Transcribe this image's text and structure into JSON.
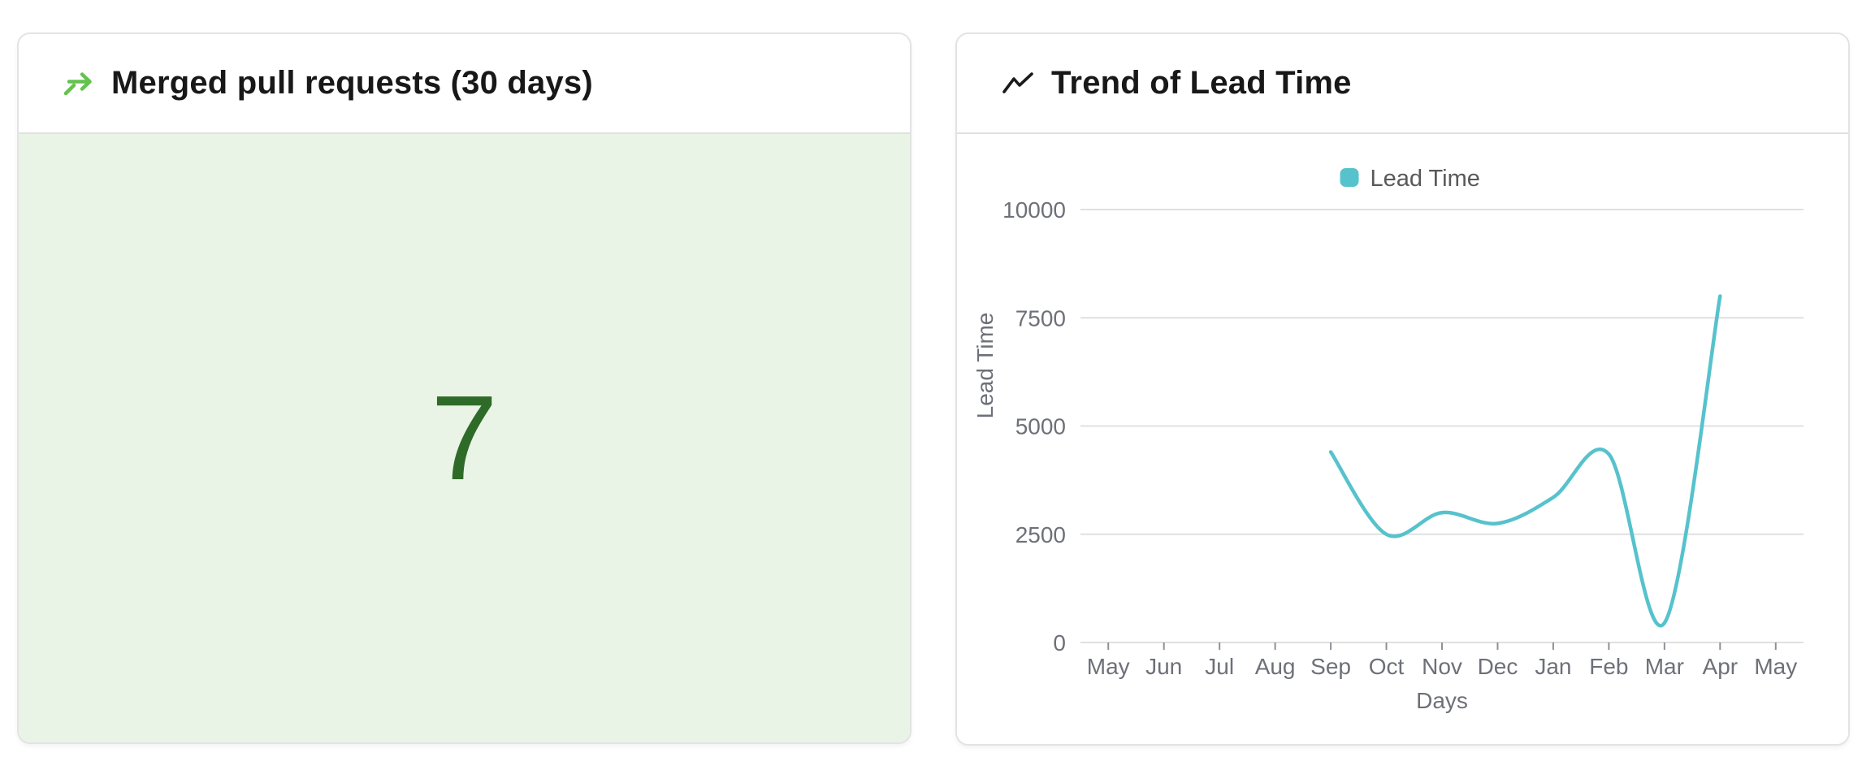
{
  "left_panel": {
    "title": "Merged pull requests (30 days)",
    "value": "7",
    "icon": "git-merge-arrow-icon",
    "value_color": "#2F6B28",
    "background_color": "#EAF4E6",
    "icon_color": "#64C24E"
  },
  "right_panel": {
    "title": "Trend of Lead Time",
    "icon": "trend-up-icon"
  },
  "chart_data": {
    "type": "line",
    "title": "Trend of Lead Time",
    "categories": [
      "May",
      "Jun",
      "Jul",
      "Aug",
      "Sep",
      "Oct",
      "Nov",
      "Dec",
      "Jan",
      "Feb",
      "Mar",
      "Apr",
      "May"
    ],
    "series": [
      {
        "name": "Lead Time",
        "color": "#56C2CC",
        "values": [
          null,
          null,
          null,
          null,
          4400,
          2500,
          3000,
          2750,
          3350,
          4350,
          450,
          8000,
          null
        ]
      }
    ],
    "xlabel": "Days",
    "ylabel": "Lead Time",
    "ylim": [
      0,
      10000
    ],
    "yticks": [
      0,
      2500,
      5000,
      7500,
      10000
    ],
    "grid": true,
    "smooth": true,
    "legend_position": "top",
    "grid_color": "#e0e0e0",
    "tick_color": "#8d9199",
    "label_color": "#6E7079"
  }
}
